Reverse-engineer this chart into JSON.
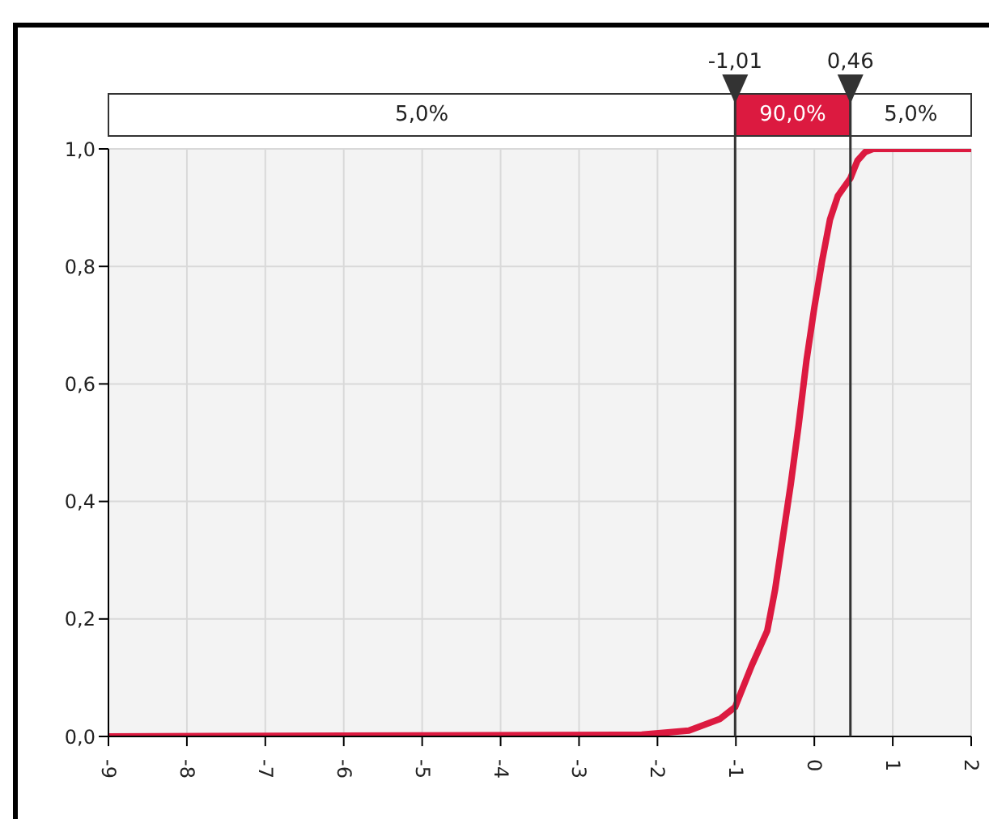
{
  "chart_data": {
    "type": "line",
    "x": [
      -9,
      -2.2,
      -1.6,
      -1.4,
      -1.2,
      -1.01,
      -0.8,
      -0.6,
      -0.5,
      -0.4,
      -0.3,
      -0.2,
      -0.1,
      0,
      0.1,
      0.2,
      0.3,
      0.46,
      0.55,
      0.65,
      0.75,
      2
    ],
    "series": [
      {
        "color": "#dc1a40",
        "values": [
          0,
          0.003,
          0.01,
          0.02,
          0.03,
          0.05,
          0.12,
          0.18,
          0.25,
          0.34,
          0.43,
          0.53,
          0.64,
          0.73,
          0.81,
          0.88,
          0.92,
          0.95,
          0.98,
          0.995,
          1,
          1
        ]
      }
    ],
    "xlim": [
      -9,
      2
    ],
    "xticks": [
      -9,
      -8,
      -7,
      -6,
      -5,
      -4,
      -3,
      -2,
      -1,
      0,
      1,
      2
    ],
    "ylim": [
      0,
      1
    ],
    "yticks": [
      {
        "value": 0,
        "label": "0,0"
      },
      {
        "value": 0.2,
        "label": "0,2"
      },
      {
        "value": 0.4,
        "label": "0,4"
      },
      {
        "value": 0.6,
        "label": "0,6"
      },
      {
        "value": 0.8,
        "label": "0,8"
      },
      {
        "value": 1,
        "label": "1,0"
      }
    ],
    "grid": true,
    "marker": "none",
    "line_style": "solid",
    "ref_lines": [
      {
        "axis": "x",
        "value": -1.01,
        "label": "-1,01",
        "color": "#333333"
      },
      {
        "axis": "x",
        "value": 0.46,
        "label": "0,46",
        "color": "#333333"
      }
    ],
    "annotations": [
      "5,0%",
      "90,0%",
      "5,0%"
    ]
  }
}
